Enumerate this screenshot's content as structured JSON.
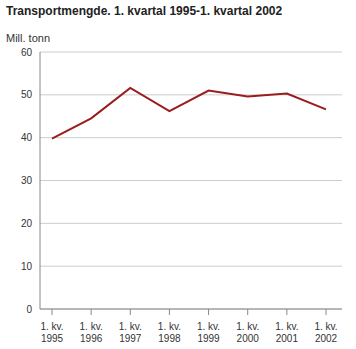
{
  "chart_data": {
    "type": "line",
    "title": "Transportmengde. 1. kvartal 1995-1. kvartal 2002",
    "y_label": "Mill. tonn",
    "categories": [
      "1. kv. 1995",
      "1. kv. 1996",
      "1. kv. 1997",
      "1. kv. 1998",
      "1. kv. 1999",
      "1. kv. 2000",
      "1. kv. 2001",
      "1. kv. 2002"
    ],
    "values": [
      39.8,
      44.5,
      51.6,
      46.2,
      51.0,
      49.6,
      50.3,
      46.6
    ],
    "color": "#9b1c1c",
    "ylim": [
      0,
      60
    ],
    "yticks": [
      0,
      10,
      20,
      30,
      40,
      50,
      60
    ],
    "grid": true
  }
}
